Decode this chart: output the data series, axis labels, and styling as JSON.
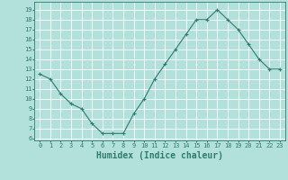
{
  "x": [
    0,
    1,
    2,
    3,
    4,
    5,
    6,
    7,
    8,
    9,
    10,
    11,
    12,
    13,
    14,
    15,
    16,
    17,
    18,
    19,
    20,
    21,
    22,
    23
  ],
  "y": [
    12.5,
    12.0,
    10.5,
    9.5,
    9.0,
    7.5,
    6.5,
    6.5,
    6.5,
    8.5,
    10.0,
    12.0,
    13.5,
    15.0,
    16.5,
    18.0,
    18.0,
    19.0,
    18.0,
    17.0,
    15.5,
    14.0,
    13.0,
    13.0
  ],
  "xlim": [
    -0.5,
    23.5
  ],
  "ylim": [
    5.8,
    19.8
  ],
  "xticks": [
    0,
    1,
    2,
    3,
    4,
    5,
    6,
    7,
    8,
    9,
    10,
    11,
    12,
    13,
    14,
    15,
    16,
    17,
    18,
    19,
    20,
    21,
    22,
    23
  ],
  "yticks": [
    6,
    7,
    8,
    9,
    10,
    11,
    12,
    13,
    14,
    15,
    16,
    17,
    18,
    19
  ],
  "xlabel": "Humidex (Indice chaleur)",
  "line_color": "#2e7d6e",
  "marker": "+",
  "bg_color": "#b2e0da",
  "grid_color": "#ffffff",
  "tick_label_fontsize": 5.0,
  "xlabel_fontsize": 7.0
}
